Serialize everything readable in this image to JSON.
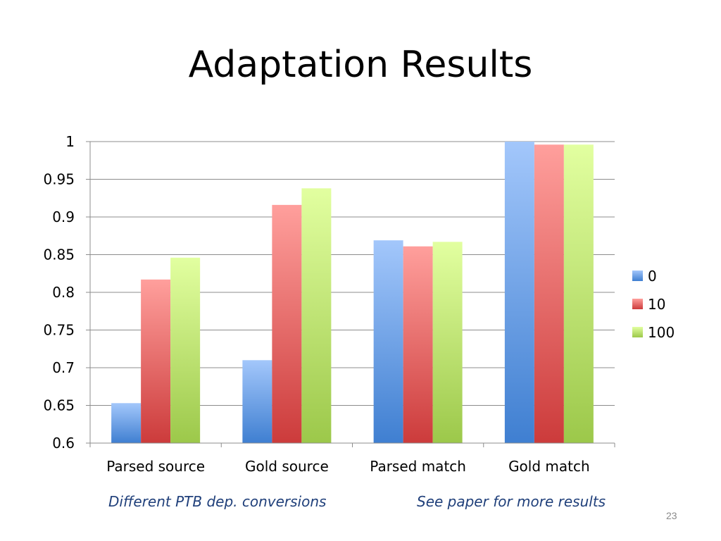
{
  "slide": {
    "title": "Adaptation Results",
    "note_left": "Different PTB dep. conversions",
    "note_right": "See paper for more results",
    "page_number": "23"
  },
  "chart_data": {
    "type": "bar",
    "categories": [
      "Parsed source",
      "Gold source",
      "Parsed match",
      "Gold match"
    ],
    "series": [
      {
        "name": "0",
        "values": [
          0.653,
          0.71,
          0.869,
          1.0
        ],
        "color_top": "#a3c7fb",
        "color_bottom": "#3f7fd1"
      },
      {
        "name": "10",
        "values": [
          0.817,
          0.916,
          0.861,
          0.996
        ],
        "color_top": "#ff9f9c",
        "color_bottom": "#cc3b3b"
      },
      {
        "name": "100",
        "values": [
          0.846,
          0.938,
          0.867,
          0.996
        ],
        "color_top": "#e2ffa0",
        "color_bottom": "#9cc84a"
      }
    ],
    "ylim": [
      0.6,
      1.0
    ],
    "yticks": [
      0.6,
      0.65,
      0.7,
      0.75,
      0.8,
      0.85,
      0.9,
      0.95,
      1
    ],
    "ytick_labels": [
      "0.6",
      "0.65",
      "0.7",
      "0.75",
      "0.8",
      "0.85",
      "0.9",
      "0.95",
      "1"
    ],
    "grid": true,
    "legend_position": "right",
    "title": "",
    "xlabel": "",
    "ylabel": ""
  }
}
